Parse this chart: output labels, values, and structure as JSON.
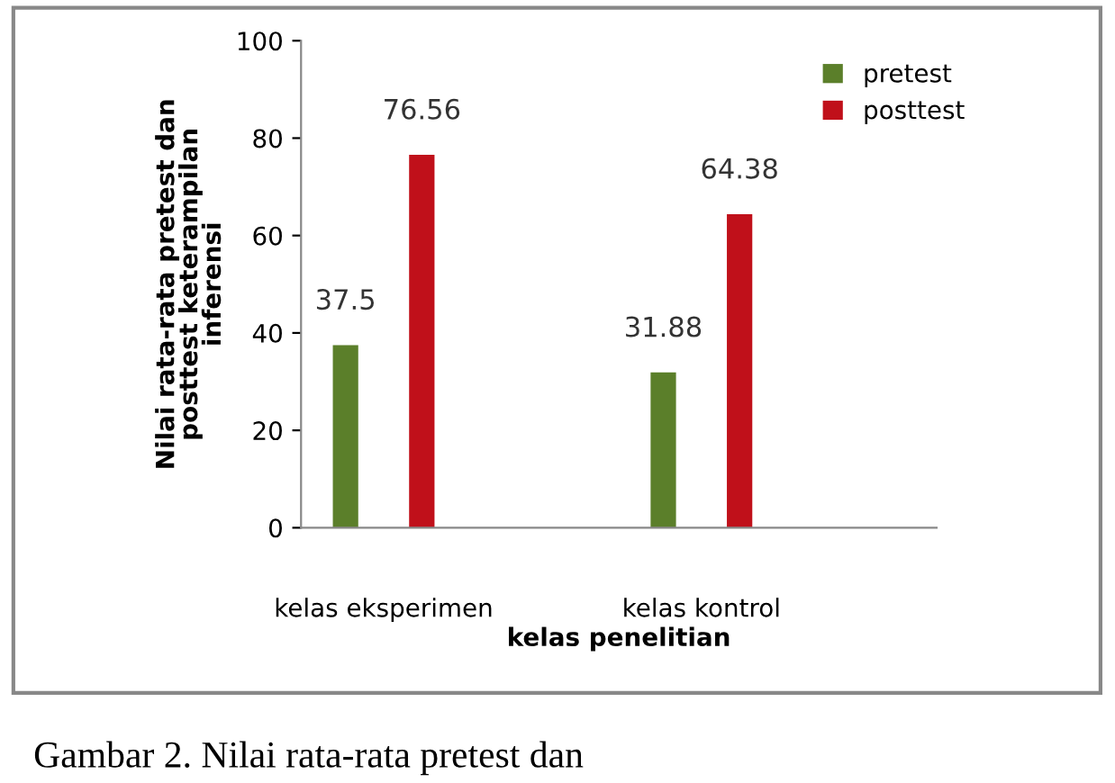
{
  "chart_data": {
    "type": "bar",
    "categories": [
      "kelas eksperimen",
      "kelas kontrol"
    ],
    "series": [
      {
        "name": "pretest",
        "color": "#5b7f2a",
        "values": [
          37.5,
          31.88
        ]
      },
      {
        "name": "posttest",
        "color": "#c0101a",
        "values": [
          76.56,
          64.38
        ]
      }
    ],
    "ylabel": "Nilai rata-rata pretest dan\nposttest keterampilan\ninferensi",
    "xlabel": "kelas penelitian",
    "ylim": [
      0,
      100
    ],
    "yticks": [
      0,
      20,
      40,
      60,
      80,
      100
    ],
    "grid": false,
    "legend": "top right",
    "data_labels": true,
    "annotations": [
      "Gambar 2. Nilai rata-rata pretest dan"
    ]
  }
}
